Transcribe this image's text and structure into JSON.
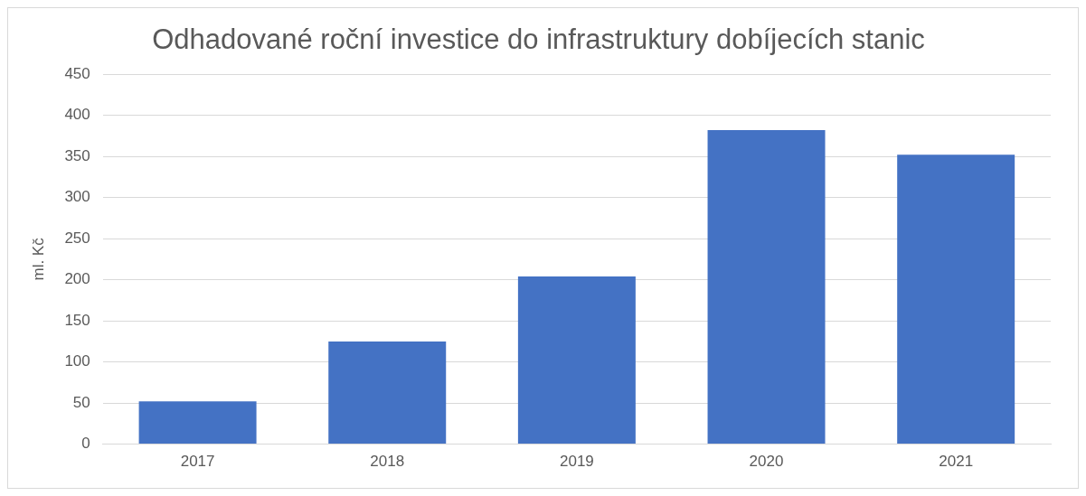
{
  "chart_data": {
    "type": "bar",
    "title": "Odhadované roční investice do infrastruktury dobíjecích stanic",
    "ylabel": "ml. Kč",
    "categories": [
      "2017",
      "2018",
      "2019",
      "2020",
      "2021"
    ],
    "values": [
      52,
      125,
      204,
      382,
      352
    ],
    "color": "#4472c4",
    "ylim": [
      0,
      450
    ],
    "yticks": [
      0,
      50,
      100,
      150,
      200,
      250,
      300,
      350,
      400,
      450
    ],
    "grid": "y",
    "legend": false
  }
}
